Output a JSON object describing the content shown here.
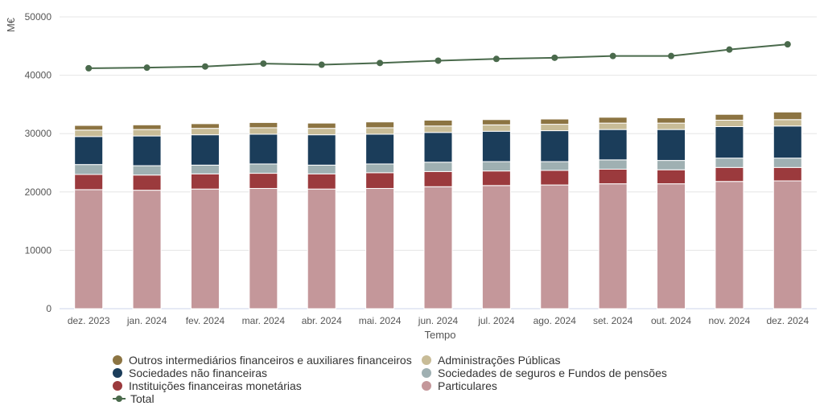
{
  "chart_data": {
    "type": "bar",
    "stacked": true,
    "title": "",
    "xlabel": "Tempo",
    "ylabel": "M€",
    "ylim": [
      0,
      50000
    ],
    "yticks": [
      0,
      10000,
      20000,
      30000,
      40000,
      50000
    ],
    "grid": true,
    "legend_position": "bottom",
    "categories": [
      "dez. 2023",
      "jan. 2024",
      "fev. 2024",
      "mar. 2024",
      "abr. 2024",
      "mai. 2024",
      "jun. 2024",
      "jul. 2024",
      "ago. 2024",
      "set. 2024",
      "out. 2024",
      "nov. 2024",
      "dez. 2024"
    ],
    "series": [
      {
        "name": "Particulares",
        "type": "bar",
        "color": "#c4979a",
        "values": [
          20400,
          20300,
          20500,
          20600,
          20500,
          20600,
          20900,
          21100,
          21200,
          21400,
          21400,
          21800,
          21900
        ]
      },
      {
        "name": "Instituições financeiras monetárias",
        "type": "bar",
        "color": "#9b3a3d",
        "values": [
          2600,
          2600,
          2600,
          2600,
          2600,
          2700,
          2600,
          2500,
          2500,
          2500,
          2400,
          2400,
          2300
        ]
      },
      {
        "name": "Sociedades de seguros e Fundos de pensões",
        "type": "bar",
        "color": "#9fb0b2",
        "values": [
          1700,
          1600,
          1500,
          1600,
          1500,
          1500,
          1600,
          1600,
          1500,
          1600,
          1600,
          1600,
          1600
        ]
      },
      {
        "name": "Sociedades não financeiras",
        "type": "bar",
        "color": "#1b3d5a",
        "values": [
          4800,
          5100,
          5200,
          5100,
          5200,
          5100,
          5100,
          5200,
          5300,
          5200,
          5300,
          5400,
          5500
        ]
      },
      {
        "name": "Administrações Públicas",
        "type": "bar",
        "color": "#c8bc97",
        "values": [
          1100,
          1100,
          1100,
          1100,
          1100,
          1100,
          1100,
          1100,
          1100,
          1100,
          1100,
          1100,
          1100
        ]
      },
      {
        "name": "Outros intermediários financeiros e auxiliares financeiros",
        "type": "bar",
        "color": "#8c7442",
        "values": [
          800,
          800,
          800,
          900,
          900,
          1000,
          1000,
          900,
          900,
          1000,
          900,
          1000,
          1300
        ]
      },
      {
        "name": "Total",
        "type": "line",
        "color": "#4a6a4c",
        "values": [
          41200,
          41300,
          41500,
          42000,
          41800,
          42100,
          42500,
          42800,
          43000,
          43300,
          43300,
          44400,
          45300
        ]
      }
    ]
  },
  "legend": {
    "left": [
      {
        "label": "Outros intermediários financeiros e auxiliares financeiros",
        "color": "#8c7442",
        "kind": "dot"
      },
      {
        "label": "Sociedades não financeiras",
        "color": "#1b3d5a",
        "kind": "dot"
      },
      {
        "label": "Instituições financeiras monetárias",
        "color": "#9b3a3d",
        "kind": "dot"
      },
      {
        "label": "Total",
        "color": "#4a6a4c",
        "kind": "line"
      }
    ],
    "right": [
      {
        "label": "Administrações Públicas",
        "color": "#c8bc97",
        "kind": "dot"
      },
      {
        "label": "Sociedades de seguros e Fundos de pensões",
        "color": "#9fb0b2",
        "kind": "dot"
      },
      {
        "label": "Particulares",
        "color": "#c4979a",
        "kind": "dot"
      }
    ]
  }
}
